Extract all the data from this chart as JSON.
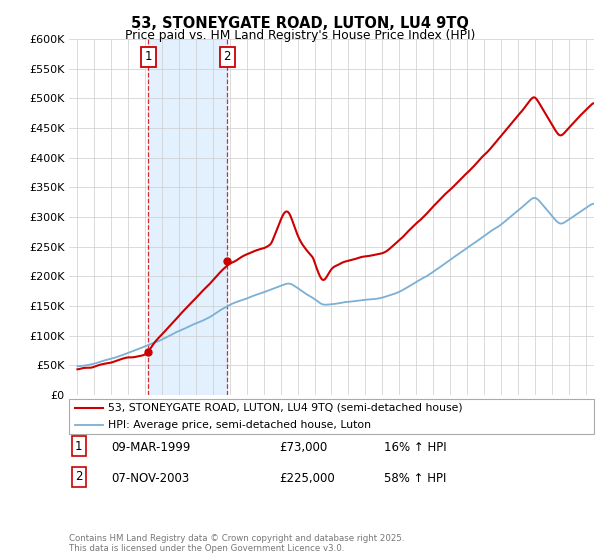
{
  "title": "53, STONEYGATE ROAD, LUTON, LU4 9TQ",
  "subtitle": "Price paid vs. HM Land Registry's House Price Index (HPI)",
  "ylabel_ticks": [
    "£0",
    "£50K",
    "£100K",
    "£150K",
    "£200K",
    "£250K",
    "£300K",
    "£350K",
    "£400K",
    "£450K",
    "£500K",
    "£550K",
    "£600K"
  ],
  "ytick_values": [
    0,
    50000,
    100000,
    150000,
    200000,
    250000,
    300000,
    350000,
    400000,
    450000,
    500000,
    550000,
    600000
  ],
  "xmin": 1994.5,
  "xmax": 2025.5,
  "ymin": 0,
  "ymax": 600000,
  "purchase1_date": 1999.19,
  "purchase1_price": 73000,
  "purchase2_date": 2003.85,
  "purchase2_price": 225000,
  "legend_line1": "53, STONEYGATE ROAD, LUTON, LU4 9TQ (semi-detached house)",
  "legend_line2": "HPI: Average price, semi-detached house, Luton",
  "table_row1": [
    "1",
    "09-MAR-1999",
    "£73,000",
    "16% ↑ HPI"
  ],
  "table_row2": [
    "2",
    "07-NOV-2003",
    "£225,000",
    "58% ↑ HPI"
  ],
  "footer": "Contains HM Land Registry data © Crown copyright and database right 2025.\nThis data is licensed under the Open Government Licence v3.0.",
  "line_color_red": "#cc0000",
  "line_color_blue": "#7bafd4",
  "shade_color": "#ddeeff",
  "grid_color": "#cccccc",
  "bg_color": "#ffffff"
}
